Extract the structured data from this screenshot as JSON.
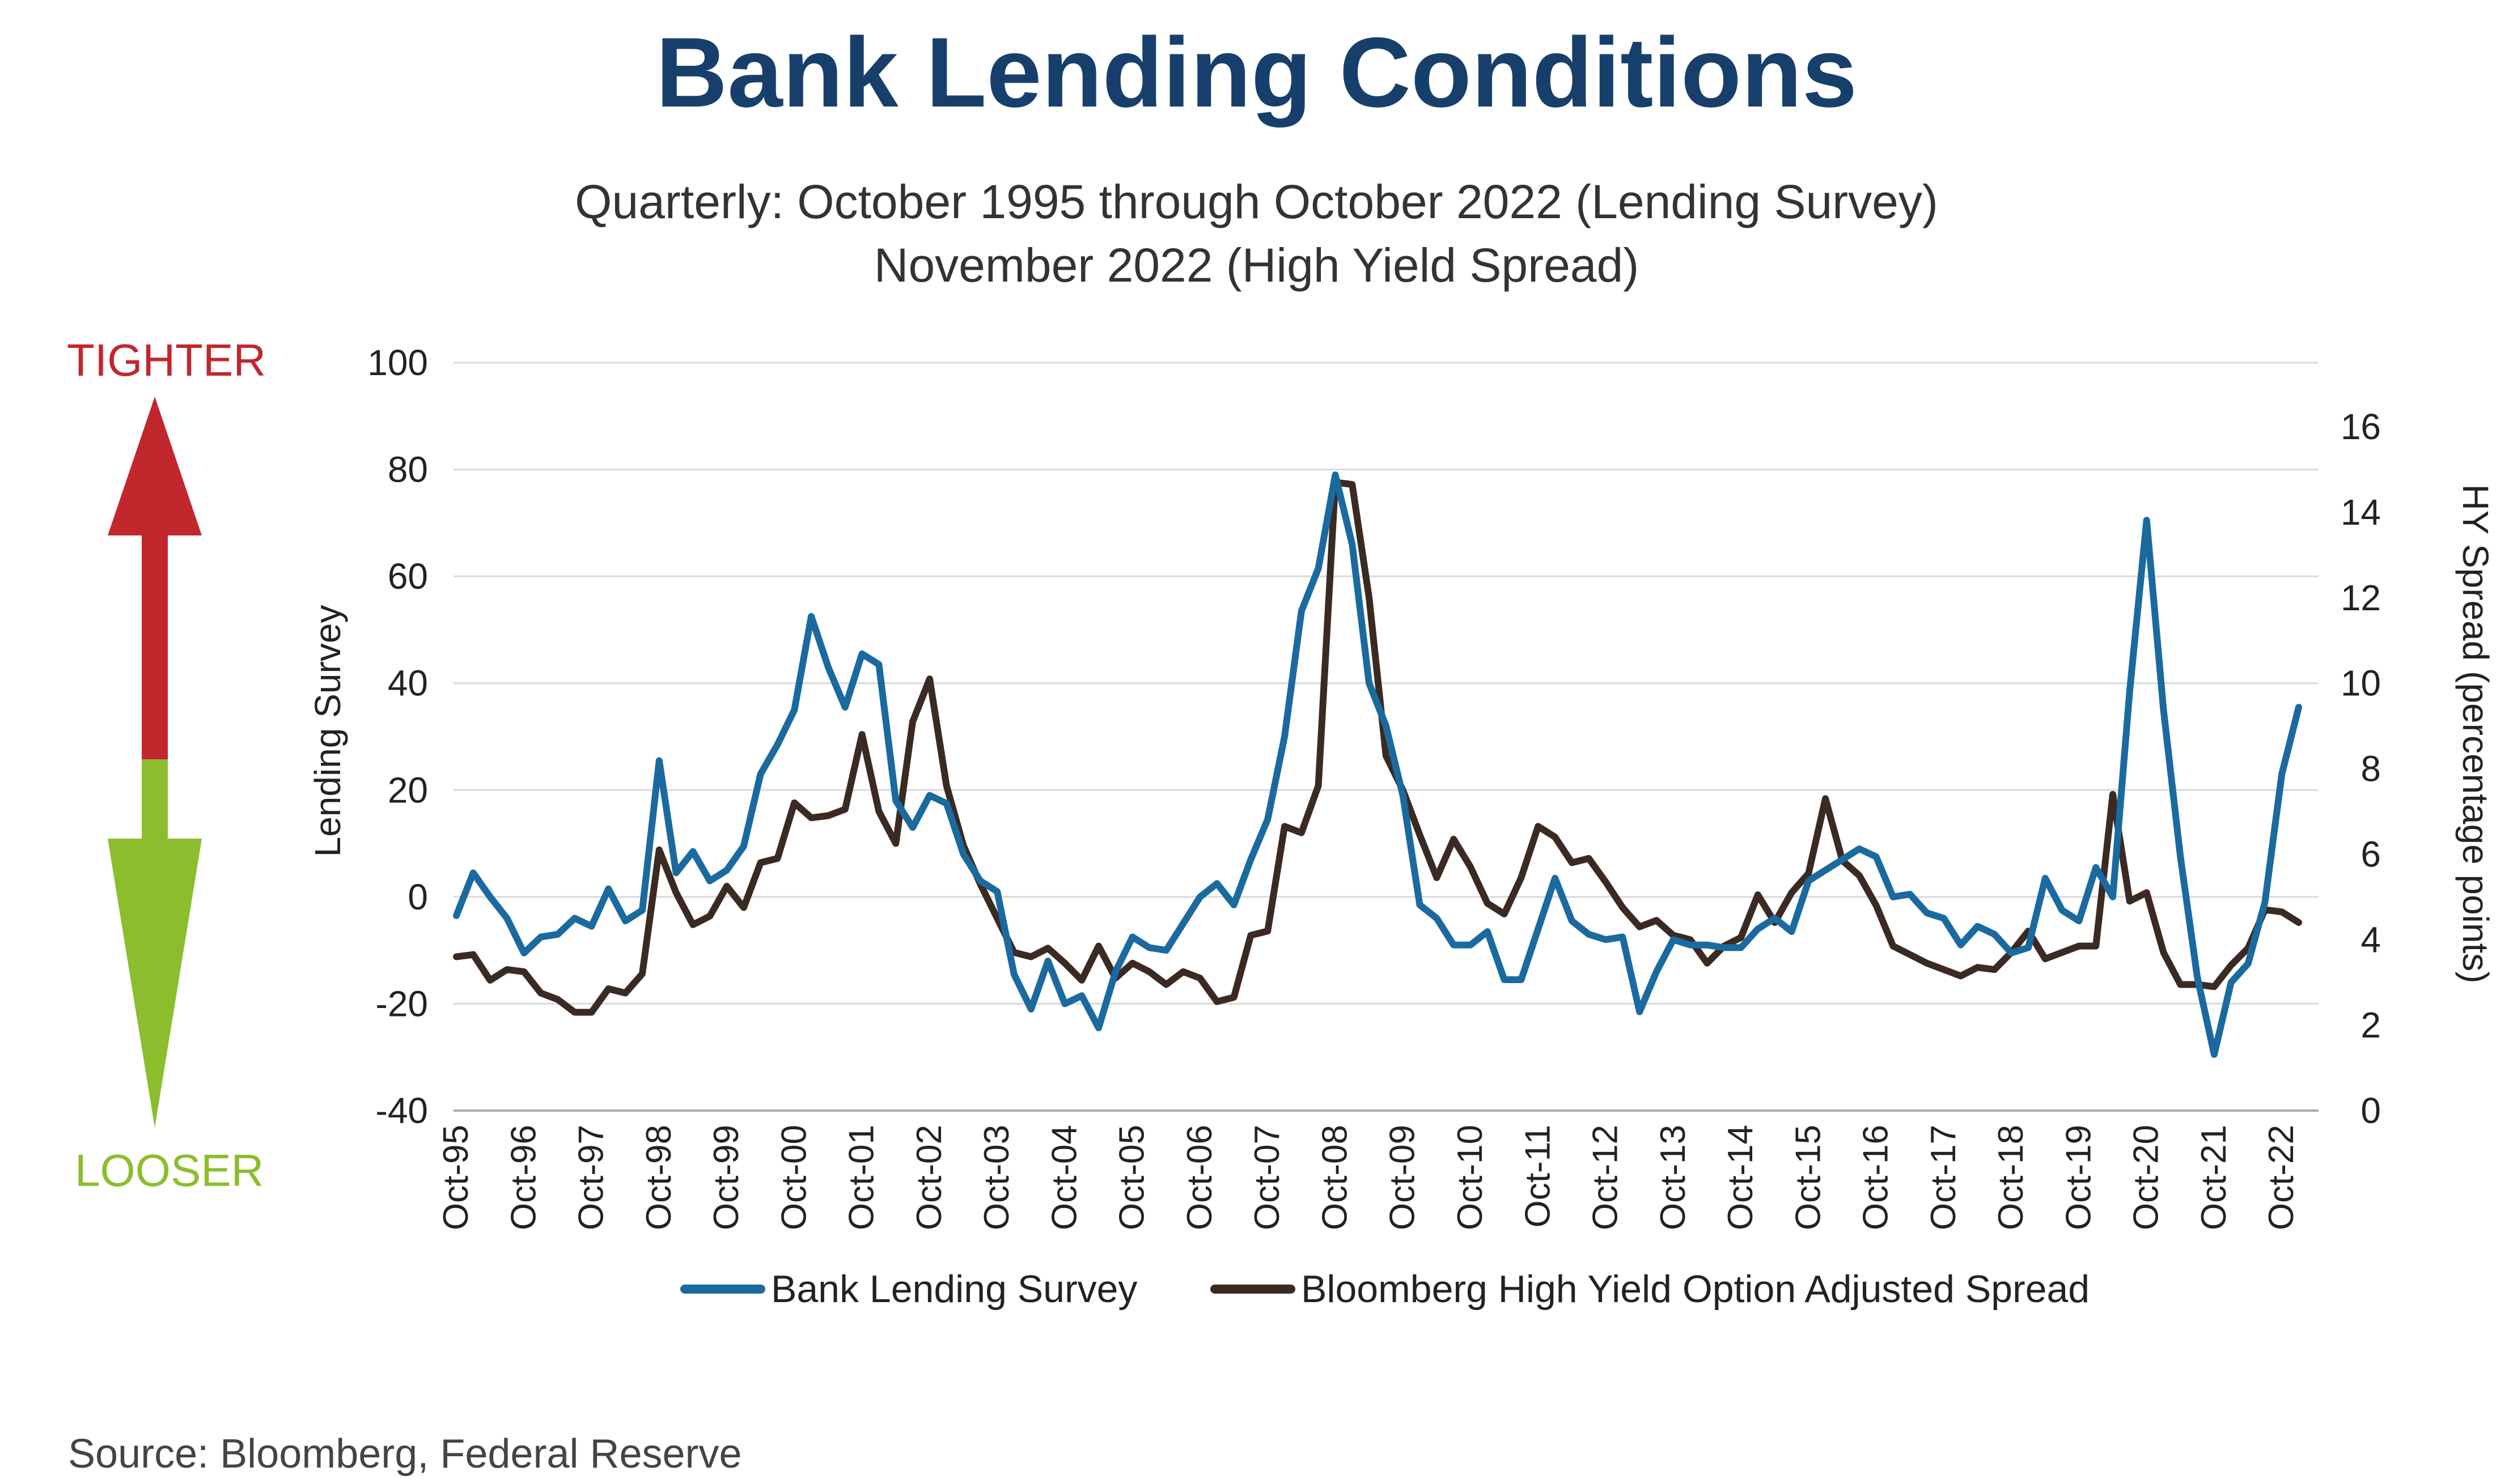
{
  "title": "Bank Lending Conditions",
  "subtitle_line1": "Quarterly: October 1995 through October 2022 (Lending Survey)",
  "subtitle_line2": "November 2022 (High Yield Spread)",
  "source": "Source: Bloomberg, Federal Reserve",
  "arrow": {
    "up_label": "TIGHTER",
    "down_label": "LOOSER",
    "up_color": "#c1272d",
    "down_color": "#8cbd2c"
  },
  "chart_data": {
    "type": "line",
    "title": "Bank Lending Conditions",
    "left_axis": {
      "label": "Lending Survey",
      "range": [
        -40,
        100
      ],
      "ticks": [
        "-40",
        "-20",
        "0",
        "20",
        "40",
        "60",
        "80",
        "100"
      ]
    },
    "right_axis": {
      "label": "HY Spread (percentage points)",
      "range": [
        0,
        17
      ],
      "ticks": [
        "0",
        "2",
        "4",
        "6",
        "8",
        "10",
        "12",
        "14",
        "16"
      ]
    },
    "x_tick_labels": [
      "Oct-95",
      "Oct-96",
      "Oct-97",
      "Oct-98",
      "Oct-99",
      "Oct-00",
      "Oct-01",
      "Oct-02",
      "Oct-03",
      "Oct-04",
      "Oct-05",
      "Oct-06",
      "Oct-07",
      "Oct-08",
      "Oct-09",
      "Oct-10",
      "Oct-11",
      "Oct-12",
      "Oct-13",
      "Oct-14",
      "Oct-15",
      "Oct-16",
      "Oct-17",
      "Oct-18",
      "Oct-19",
      "Oct-20",
      "Oct-21",
      "Oct-22"
    ],
    "grid": "horizontal",
    "legend_position": "bottom",
    "series": [
      {
        "name": "Bank Lending Survey",
        "axis": "left",
        "color": "#1a6aa0",
        "values": [
          -3.5,
          4.5,
          0,
          -4,
          -10.5,
          -7.5,
          -7,
          -4,
          -5.5,
          1.5,
          -4.5,
          -2.5,
          25.5,
          4.5,
          8.5,
          3,
          5,
          9.5,
          23,
          28.5,
          35,
          52.5,
          43,
          35.5,
          45.5,
          43.5,
          18,
          13,
          19,
          17.5,
          8,
          3,
          1,
          -14.5,
          -21,
          -12,
          -20,
          -18.5,
          -24.5,
          -14,
          -7.5,
          -9.5,
          -10,
          -5,
          0,
          2.5,
          -1.5,
          7,
          14.5,
          30,
          53.5,
          61.5,
          79,
          66,
          40,
          32,
          19,
          -1.5,
          -4,
          -9,
          -9,
          -6.5,
          -15.5,
          -15.5,
          -6,
          3.5,
          -4.5,
          -7,
          -8,
          -7.5,
          -21.5,
          -14,
          -8,
          -9,
          -9,
          -9.5,
          -9.5,
          -6,
          -4,
          -6.5,
          3,
          5,
          7,
          9,
          7.5,
          0,
          0.5,
          -3,
          -4,
          -9,
          -5.5,
          -7,
          -10.5,
          -9.5,
          3.5,
          -2.5,
          -4.5,
          5.5,
          0,
          38.5,
          70.5,
          35,
          7.5,
          -15,
          -29.5,
          -16,
          -12.5,
          -1,
          23,
          35.5
        ]
      },
      {
        "name": "Bloomberg High Yield Option Adjusted Spread",
        "axis": "right",
        "color": "#3b2a22",
        "values": [
          3.6,
          3.65,
          3.05,
          3.3,
          3.25,
          2.75,
          2.6,
          2.3,
          2.3,
          2.85,
          2.75,
          3.2,
          6.1,
          5.1,
          4.35,
          4.55,
          5.25,
          4.75,
          5.8,
          5.9,
          7.2,
          6.85,
          6.9,
          7.05,
          8.8,
          7,
          6.25,
          9.1,
          10.1,
          7.6,
          6.2,
          5.3,
          4.5,
          3.7,
          3.6,
          3.8,
          3.45,
          3.05,
          3.85,
          3.1,
          3.45,
          3.25,
          2.95,
          3.25,
          3.1,
          2.55,
          2.65,
          4.1,
          4.2,
          6.65,
          6.5,
          7.6,
          14.7,
          14.65,
          12,
          8.3,
          7.5,
          6.45,
          5.45,
          6.35,
          5.7,
          4.85,
          4.6,
          5.45,
          6.65,
          6.4,
          5.8,
          5.9,
          5.35,
          4.75,
          4.3,
          4.45,
          4.1,
          4,
          3.45,
          3.85,
          4.05,
          5.05,
          4.4,
          5.1,
          5.55,
          7.3,
          5.85,
          5.5,
          4.8,
          3.85,
          3.65,
          3.45,
          3.3,
          3.15,
          3.35,
          3.3,
          3.7,
          4.2,
          3.55,
          3.7,
          3.85,
          3.85,
          7.4,
          4.9,
          5.1,
          3.7,
          2.95,
          2.95,
          2.9,
          3.4,
          3.8,
          4.7,
          4.65,
          4.4
        ]
      }
    ]
  }
}
